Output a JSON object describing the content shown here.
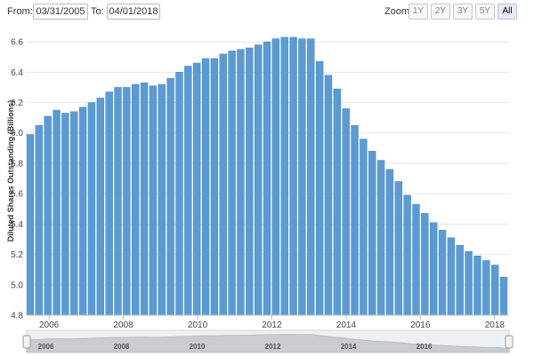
{
  "range": {
    "from_label": "From:",
    "from_value": "03/31/2005",
    "to_label": "To:",
    "to_value": "04/01/2018"
  },
  "zoom": {
    "label": "Zoom:",
    "buttons": [
      "1Y",
      "2Y",
      "3Y",
      "5Y",
      "All"
    ],
    "active": "All"
  },
  "colors": {
    "bar": "#5b9bd5",
    "bar_edge": "#4a86c0",
    "grid": "#e6e6e6",
    "navigator_bg": "#eef0f3",
    "navigator_fill": "#c9ccd1"
  },
  "chart_data": {
    "type": "bar",
    "title": "",
    "xlabel": "",
    "ylabel": "Diluted Shares Outstanding (Billions)",
    "ylim": [
      4.8,
      6.7
    ],
    "yticks": [
      "4.8",
      "5.0",
      "5.2",
      "5.4",
      "5.6",
      "5.8",
      "6.0",
      "6.2",
      "6.4",
      "6.6"
    ],
    "xtick_labels": [
      "2006",
      "2008",
      "2010",
      "2012",
      "2014",
      "2016",
      "2018"
    ],
    "navigator_labels": [
      "2006",
      "2008",
      "2010",
      "2012",
      "2014",
      "2016"
    ],
    "grid": true,
    "legend": "none",
    "x_start": "2005-06-30",
    "x_end": "2018-03-31",
    "series": [
      {
        "values": [
          5.99,
          6.05,
          6.11,
          6.15,
          6.13,
          6.14,
          6.17,
          6.2,
          6.23,
          6.27,
          6.3,
          6.3,
          6.32,
          6.33,
          6.31,
          6.32,
          6.36,
          6.4,
          6.44,
          6.46,
          6.49,
          6.49,
          6.52,
          6.54,
          6.55,
          6.56,
          6.58,
          6.6,
          6.62,
          6.63,
          6.63,
          6.62,
          6.62,
          6.47,
          6.38,
          6.29,
          6.16,
          6.05,
          5.96,
          5.88,
          5.82,
          5.76,
          5.68,
          5.59,
          5.53,
          5.47,
          5.41,
          5.36,
          5.31,
          5.26,
          5.22,
          5.19,
          5.16,
          5.13,
          5.05
        ]
      }
    ]
  }
}
